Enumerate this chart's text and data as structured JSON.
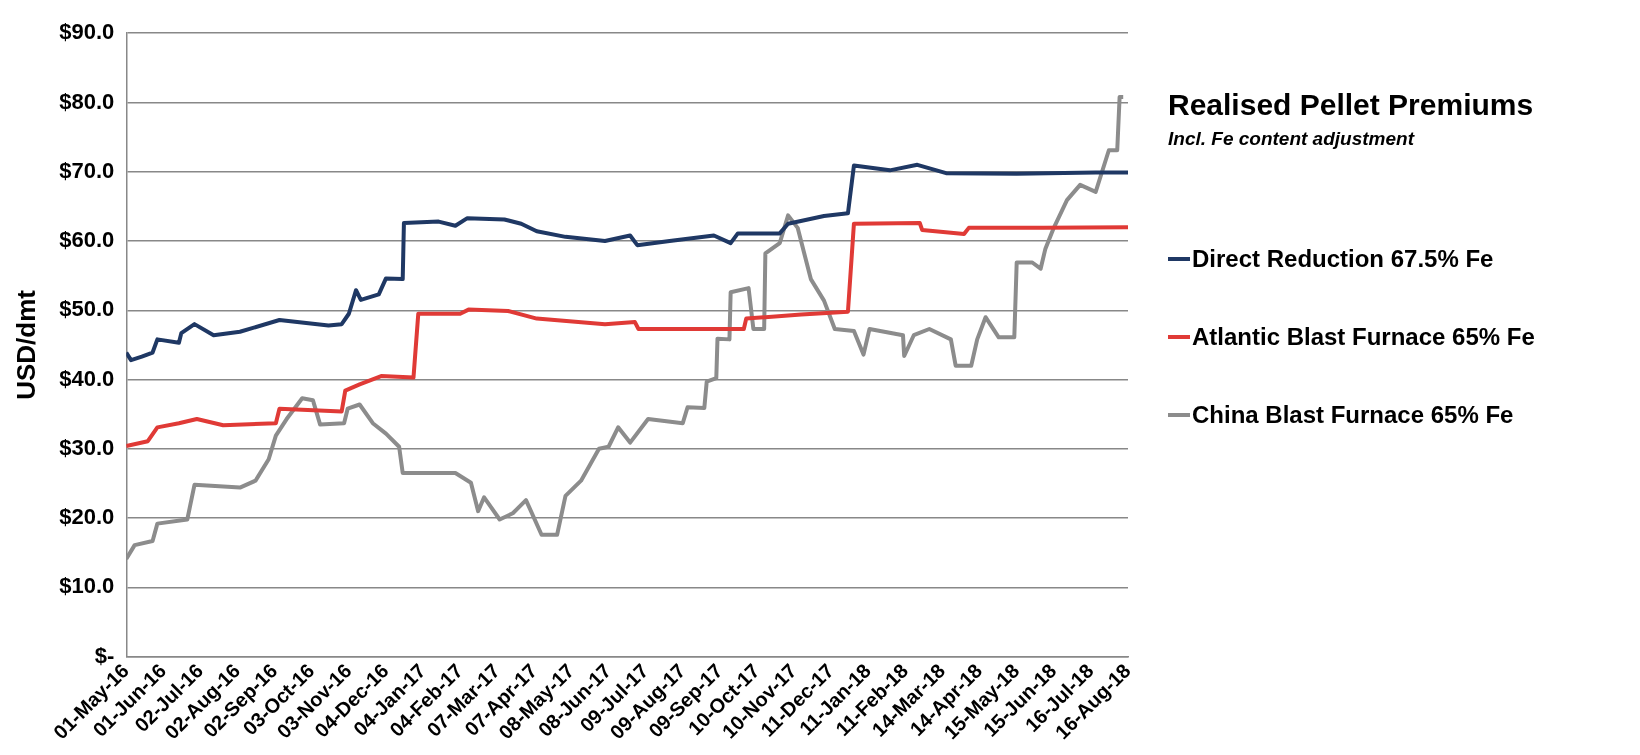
{
  "chart_data": {
    "type": "line",
    "title": "Realised Pellet Premiums",
    "subtitle": "Incl. Fe content adjustment",
    "ylabel": "USD/dmt",
    "xlim": [
      "2016-05-01",
      "2018-08-16"
    ],
    "xticks": [
      {
        "value": "2016-05-01",
        "label": "01-May-16"
      },
      {
        "value": "2016-06-01",
        "label": "01-Jun-16"
      },
      {
        "value": "2016-07-02",
        "label": "02-Jul-16"
      },
      {
        "value": "2016-08-02",
        "label": "02-Aug-16"
      },
      {
        "value": "2016-09-02",
        "label": "02-Sep-16"
      },
      {
        "value": "2016-10-03",
        "label": "03-Oct-16"
      },
      {
        "value": "2016-11-03",
        "label": "03-Nov-16"
      },
      {
        "value": "2016-12-04",
        "label": "04-Dec-16"
      },
      {
        "value": "2017-01-04",
        "label": "04-Jan-17"
      },
      {
        "value": "2017-02-04",
        "label": "04-Feb-17"
      },
      {
        "value": "2017-03-07",
        "label": "07-Mar-17"
      },
      {
        "value": "2017-04-07",
        "label": "07-Apr-17"
      },
      {
        "value": "2017-05-08",
        "label": "08-May-17"
      },
      {
        "value": "2017-06-08",
        "label": "08-Jun-17"
      },
      {
        "value": "2017-07-09",
        "label": "09-Jul-17"
      },
      {
        "value": "2017-08-09",
        "label": "09-Aug-17"
      },
      {
        "value": "2017-09-09",
        "label": "09-Sep-17"
      },
      {
        "value": "2017-10-10",
        "label": "10-Oct-17"
      },
      {
        "value": "2017-11-10",
        "label": "10-Nov-17"
      },
      {
        "value": "2017-12-11",
        "label": "11-Dec-17"
      },
      {
        "value": "2018-01-11",
        "label": "11-Jan-18"
      },
      {
        "value": "2018-02-11",
        "label": "11-Feb-18"
      },
      {
        "value": "2018-03-14",
        "label": "14-Mar-18"
      },
      {
        "value": "2018-04-14",
        "label": "14-Apr-18"
      },
      {
        "value": "2018-05-15",
        "label": "15-May-18"
      },
      {
        "value": "2018-06-15",
        "label": "15-Jun-18"
      },
      {
        "value": "2018-07-16",
        "label": "16-Jul-18"
      },
      {
        "value": "2018-08-16",
        "label": "16-Aug-18"
      }
    ],
    "ylim": [
      0,
      90
    ],
    "yticks": [
      {
        "value": 0,
        "label": "$-"
      },
      {
        "value": 10,
        "label": "$10.0"
      },
      {
        "value": 20,
        "label": "$20.0"
      },
      {
        "value": 30,
        "label": "$30.0"
      },
      {
        "value": 40,
        "label": "$40.0"
      },
      {
        "value": 50,
        "label": "$50.0"
      },
      {
        "value": 60,
        "label": "$60.0"
      },
      {
        "value": 70,
        "label": "$70.0"
      },
      {
        "value": 80,
        "label": "$80.0"
      },
      {
        "value": 90,
        "label": "$90.0"
      }
    ],
    "grid": "y",
    "legend": "right",
    "marker": "none",
    "line_style": "solid",
    "series": [
      {
        "name": "Direct Reduction 67.5% Fe",
        "color": "#1f3864",
        "x": [
          "2016-05-01",
          "2016-05-05",
          "2016-05-14",
          "2016-05-23",
          "2016-05-27",
          "2016-06-14",
          "2016-06-16",
          "2016-06-27",
          "2016-07-13",
          "2016-08-04",
          "2016-09-06",
          "2016-10-17",
          "2016-10-28",
          "2016-11-03",
          "2016-11-09",
          "2016-11-13",
          "2016-11-28",
          "2016-12-04",
          "2016-12-18",
          "2016-12-19",
          "2017-01-17",
          "2017-01-31",
          "2017-02-10",
          "2017-03-13",
          "2017-03-27",
          "2017-04-09",
          "2017-05-03",
          "2017-06-05",
          "2017-06-26",
          "2017-07-02",
          "2017-07-29",
          "2017-09-04",
          "2017-09-18",
          "2017-09-24",
          "2017-10-29",
          "2017-11-05",
          "2017-12-05",
          "2017-12-25",
          "2017-12-30",
          "2018-01-29",
          "2018-02-21",
          "2018-03-17",
          "2018-05-15",
          "2018-07-20",
          "2018-08-16"
        ],
        "values": [
          43.9,
          42.8,
          43.3,
          43.9,
          45.8,
          45.3,
          46.7,
          48.0,
          46.4,
          46.9,
          48.6,
          47.8,
          48.0,
          49.5,
          52.9,
          51.5,
          52.3,
          54.6,
          54.5,
          62.6,
          62.8,
          62.2,
          63.3,
          63.1,
          62.5,
          61.4,
          60.6,
          60.0,
          60.8,
          59.4,
          60.0,
          60.8,
          59.7,
          61.1,
          61.1,
          62.5,
          63.6,
          64.0,
          70.9,
          70.2,
          71.0,
          69.8,
          69.7,
          69.9,
          69.9
        ]
      },
      {
        "name": "Atlantic Blast Furnace 65% Fe",
        "color": "#e03a36",
        "x": [
          "2016-05-01",
          "2016-05-19",
          "2016-05-27",
          "2016-06-14",
          "2016-06-29",
          "2016-07-21",
          "2016-09-03",
          "2016-09-06",
          "2016-10-28",
          "2016-10-31",
          "2016-11-12",
          "2016-11-30",
          "2016-12-27",
          "2016-12-31",
          "2017-02-04",
          "2017-02-11",
          "2017-03-16",
          "2017-04-09",
          "2017-06-05",
          "2017-06-30",
          "2017-07-03",
          "2017-09-29",
          "2017-10-01",
          "2017-11-16",
          "2017-12-25",
          "2017-12-30",
          "2018-02-23",
          "2018-02-25",
          "2018-04-01",
          "2018-04-05",
          "2018-06-06",
          "2018-08-16"
        ],
        "values": [
          30.4,
          31.1,
          33.1,
          33.7,
          34.3,
          33.4,
          33.7,
          35.8,
          35.4,
          38.4,
          39.3,
          40.5,
          40.3,
          49.5,
          49.5,
          50.1,
          49.9,
          48.8,
          48.0,
          48.3,
          47.3,
          47.3,
          48.8,
          49.4,
          49.8,
          62.5,
          62.6,
          61.6,
          61.0,
          61.9,
          61.9,
          62.0
        ]
      },
      {
        "name": "China Blast Furnace 65% Fe",
        "color": "#8c8c8c",
        "x": [
          "2016-05-01",
          "2016-05-08",
          "2016-05-23",
          "2016-05-27",
          "2016-06-21",
          "2016-06-27",
          "2016-08-04",
          "2016-08-17",
          "2016-08-28",
          "2016-09-03",
          "2016-09-12",
          "2016-09-25",
          "2016-10-04",
          "2016-10-10",
          "2016-10-30",
          "2016-11-02",
          "2016-11-12",
          "2016-11-23",
          "2016-12-04",
          "2016-12-15",
          "2016-12-18",
          "2017-01-31",
          "2017-02-13",
          "2017-02-19",
          "2017-02-24",
          "2017-03-09",
          "2017-03-20",
          "2017-03-31",
          "2017-04-13",
          "2017-04-26",
          "2017-05-03",
          "2017-05-16",
          "2017-05-31",
          "2017-06-08",
          "2017-06-16",
          "2017-06-26",
          "2017-07-11",
          "2017-08-09",
          "2017-08-13",
          "2017-08-27",
          "2017-08-29",
          "2017-09-06",
          "2017-09-07",
          "2017-09-17",
          "2017-09-18",
          "2017-10-03",
          "2017-10-07",
          "2017-10-16",
          "2017-10-17",
          "2017-10-29",
          "2017-11-05",
          "2017-11-13",
          "2017-11-24",
          "2017-12-05",
          "2017-12-14",
          "2017-12-30",
          "2018-01-07",
          "2018-01-12",
          "2018-02-09",
          "2018-02-10",
          "2018-02-18",
          "2018-03-03",
          "2018-03-21",
          "2018-03-25",
          "2018-04-07",
          "2018-04-12",
          "2018-04-19",
          "2018-04-30",
          "2018-05-13",
          "2018-05-15",
          "2018-05-28",
          "2018-06-04",
          "2018-06-08",
          "2018-06-15",
          "2018-06-26",
          "2018-07-07",
          "2018-07-20",
          "2018-07-31",
          "2018-08-07",
          "2018-08-09",
          "2018-08-12"
        ],
        "values": [
          14.1,
          16.1,
          16.7,
          19.2,
          19.8,
          24.8,
          24.4,
          25.4,
          28.5,
          31.9,
          34.3,
          37.3,
          37.0,
          33.5,
          33.7,
          35.8,
          36.4,
          33.7,
          32.2,
          30.3,
          26.5,
          26.5,
          25.1,
          21.0,
          23.0,
          19.8,
          20.7,
          22.6,
          17.6,
          17.6,
          23.2,
          25.4,
          30.0,
          30.3,
          33.1,
          30.9,
          34.3,
          33.7,
          36.0,
          35.9,
          39.7,
          40.2,
          45.9,
          45.8,
          52.6,
          53.2,
          47.3,
          47.3,
          58.2,
          59.7,
          63.7,
          61.9,
          54.5,
          51.4,
          47.3,
          47.0,
          43.6,
          47.3,
          46.4,
          43.4,
          46.4,
          47.3,
          45.8,
          42.0,
          42.0,
          45.8,
          49.0,
          46.1,
          46.1,
          56.9,
          56.9,
          56.0,
          58.9,
          61.9,
          65.9,
          68.1,
          67.1,
          73.1,
          73.1,
          80.8,
          80.8
        ]
      }
    ]
  }
}
